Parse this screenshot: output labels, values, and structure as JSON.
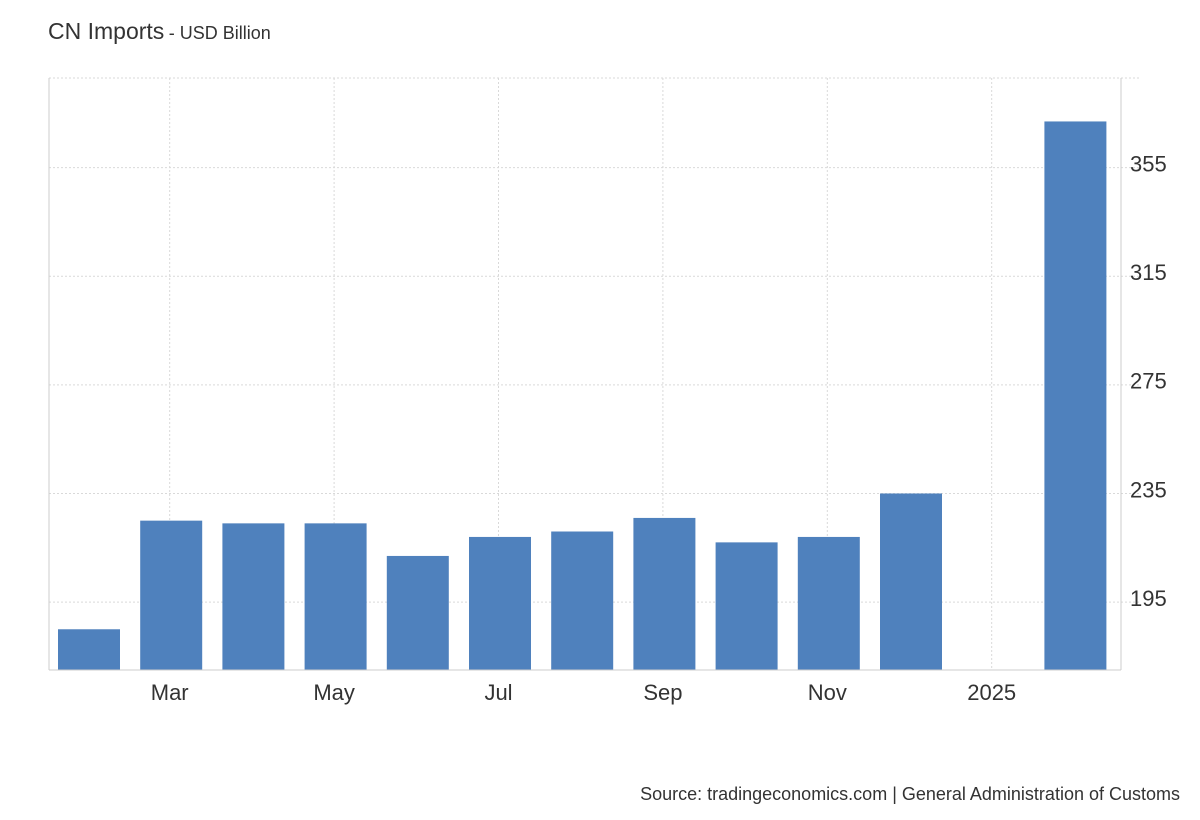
{
  "header": {
    "title": "CN Imports",
    "subtitle": "- USD Billion"
  },
  "footer": {
    "source": "Source: tradingeconomics.com | General Administration of Customs"
  },
  "chart_data": {
    "type": "bar",
    "title": "CN Imports",
    "unit": "USD Billion",
    "bar_color": "#4f81bd",
    "grid": true,
    "ylim": [
      170,
      388
    ],
    "y_ticks": [
      195,
      235,
      275,
      315,
      355
    ],
    "categories": [
      "Feb 2024",
      "Mar 2024",
      "Apr 2024",
      "May 2024",
      "Jun 2024",
      "Jul 2024",
      "Aug 2024",
      "Sep 2024",
      "Oct 2024",
      "Nov 2024",
      "Dec 2024",
      "Jan 2025",
      "Feb 2025"
    ],
    "values": [
      185,
      225,
      224,
      224,
      212,
      219,
      221,
      226,
      217,
      219,
      235,
      null,
      372
    ],
    "x_tick_labels": [
      {
        "category_index": 1,
        "label": "Mar"
      },
      {
        "category_index": 3,
        "label": "May"
      },
      {
        "category_index": 5,
        "label": "Jul"
      },
      {
        "category_index": 7,
        "label": "Sep"
      },
      {
        "category_index": 9,
        "label": "Nov"
      },
      {
        "category_index": 11,
        "label": "2025"
      }
    ]
  }
}
